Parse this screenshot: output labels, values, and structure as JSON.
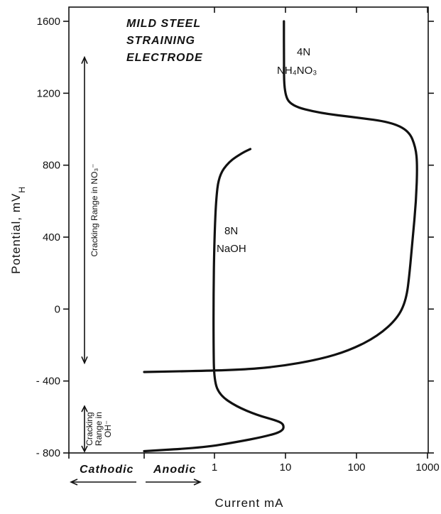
{
  "chart_data": {
    "type": "line",
    "title": "",
    "xlabel": "Current mA",
    "ylabel": "Potential, mV_H",
    "x_scale": "log",
    "ylim": [
      -800,
      1600
    ],
    "y_ticks": [
      "1600",
      "1200",
      "800",
      "400",
      "0",
      "-400",
      "-800"
    ],
    "x_tick_labels": [
      {
        "value": 1,
        "label": "1"
      },
      {
        "value": 10,
        "label": "10"
      },
      {
        "value": 100,
        "label": "100"
      },
      {
        "value": 1000,
        "label": "1000"
      }
    ],
    "series": [
      {
        "name": "4N NH4NO3",
        "points": [
          {
            "x": 9.5,
            "y": 1600
          },
          {
            "x": 9.5,
            "y": 1400
          },
          {
            "x": 9.6,
            "y": 1200
          },
          {
            "x": 12,
            "y": 1130
          },
          {
            "x": 30,
            "y": 1090
          },
          {
            "x": 100,
            "y": 1065
          },
          {
            "x": 300,
            "y": 1040
          },
          {
            "x": 550,
            "y": 990
          },
          {
            "x": 680,
            "y": 900
          },
          {
            "x": 720,
            "y": 800
          },
          {
            "x": 690,
            "y": 600
          },
          {
            "x": 620,
            "y": 400
          },
          {
            "x": 560,
            "y": 200
          },
          {
            "x": 500,
            "y": 50
          },
          {
            "x": 380,
            "y": -50
          },
          {
            "x": 200,
            "y": -150
          },
          {
            "x": 80,
            "y": -230
          },
          {
            "x": 30,
            "y": -280
          },
          {
            "x": 8,
            "y": -320
          },
          {
            "x": 2,
            "y": -340
          },
          {
            "x": "cathodic",
            "y": -350
          }
        ]
      },
      {
        "name": "8N NaOH",
        "points": [
          {
            "x": 3.2,
            "y": 890
          },
          {
            "x": 2.5,
            "y": 870
          },
          {
            "x": 1.6,
            "y": 820
          },
          {
            "x": 1.15,
            "y": 740
          },
          {
            "x": 1.05,
            "y": 600
          },
          {
            "x": 1.0,
            "y": 400
          },
          {
            "x": 0.97,
            "y": 100
          },
          {
            "x": 0.97,
            "y": -200
          },
          {
            "x": 0.99,
            "y": -400
          },
          {
            "x": 1.2,
            "y": -480
          },
          {
            "x": 2,
            "y": -540
          },
          {
            "x": 4,
            "y": -590
          },
          {
            "x": 7.5,
            "y": -620
          },
          {
            "x": 9.5,
            "y": -640
          },
          {
            "x": 9.2,
            "y": -680
          },
          {
            "x": 5,
            "y": -710
          },
          {
            "x": 2,
            "y": -740
          },
          {
            "x": 0.7,
            "y": -770
          },
          {
            "x": "cathodic",
            "y": -790
          }
        ]
      }
    ],
    "annotations": {
      "panel_title_lines": [
        "MILD STEEL",
        "STRAINING",
        "ELECTRODE"
      ],
      "nh4_conc": "4N",
      "nh4_formula": "NH₄NO₃",
      "naoh_conc": "8N",
      "naoh_formula": "NaOH",
      "range_no3": "Cracking Range in NO₃⁻",
      "range_no3_span": [
        -300,
        1400
      ],
      "range_oh_lines": [
        "Cracking",
        "Range in",
        "OH⁻"
      ],
      "range_oh_span": [
        -800,
        -540
      ],
      "cathodic_label": "Cathodic",
      "anodic_label": "Anodic"
    }
  }
}
